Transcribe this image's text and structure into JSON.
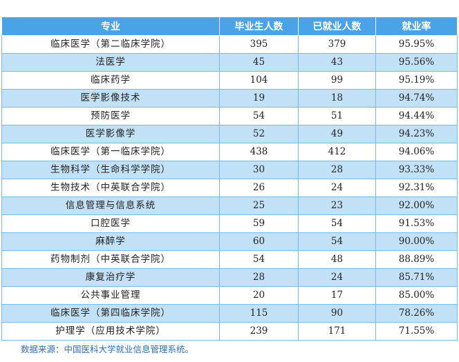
{
  "caption": "",
  "table": {
    "headers": [
      "专业",
      "毕业生人数",
      "已就业人数",
      "就业率"
    ],
    "rows": [
      [
        "临床医学（第二临床学院）",
        "395",
        "379",
        "95.95%"
      ],
      [
        "法医学",
        "45",
        "43",
        "95.56%"
      ],
      [
        "临床药学",
        "104",
        "99",
        "95.19%"
      ],
      [
        "医学影像技术",
        "19",
        "18",
        "94.74%"
      ],
      [
        "预防医学",
        "54",
        "51",
        "94.44%"
      ],
      [
        "医学影像学",
        "52",
        "49",
        "94.23%"
      ],
      [
        "临床医学（第一临床学院）",
        "438",
        "412",
        "94.06%"
      ],
      [
        "生物科学（生命科学学院）",
        "30",
        "28",
        "93.33%"
      ],
      [
        "生物技术（中英联合学院）",
        "26",
        "24",
        "92.31%"
      ],
      [
        "信息管理与信息系统",
        "25",
        "23",
        "92.00%"
      ],
      [
        "口腔医学",
        "59",
        "54",
        "91.53%"
      ],
      [
        "麻醉学",
        "60",
        "54",
        "90.00%"
      ],
      [
        "药物制剂（中英联合学院）",
        "54",
        "48",
        "88.89%"
      ],
      [
        "康复治疗学",
        "28",
        "24",
        "85.71%"
      ],
      [
        "公共事业管理",
        "20",
        "17",
        "85.00%"
      ],
      [
        "临床医学（第四临床学院）",
        "115",
        "90",
        "78.26%"
      ],
      [
        "护理学（应用技术学院）",
        "239",
        "171",
        "71.55%"
      ]
    ]
  },
  "source_note": "数据来源：中国医科大学就业信息管理系统。",
  "colors": {
    "header_bg": "#4aa3e6",
    "row_alt_bg": "#c2e1f7",
    "note_text": "#2c6fb3"
  }
}
